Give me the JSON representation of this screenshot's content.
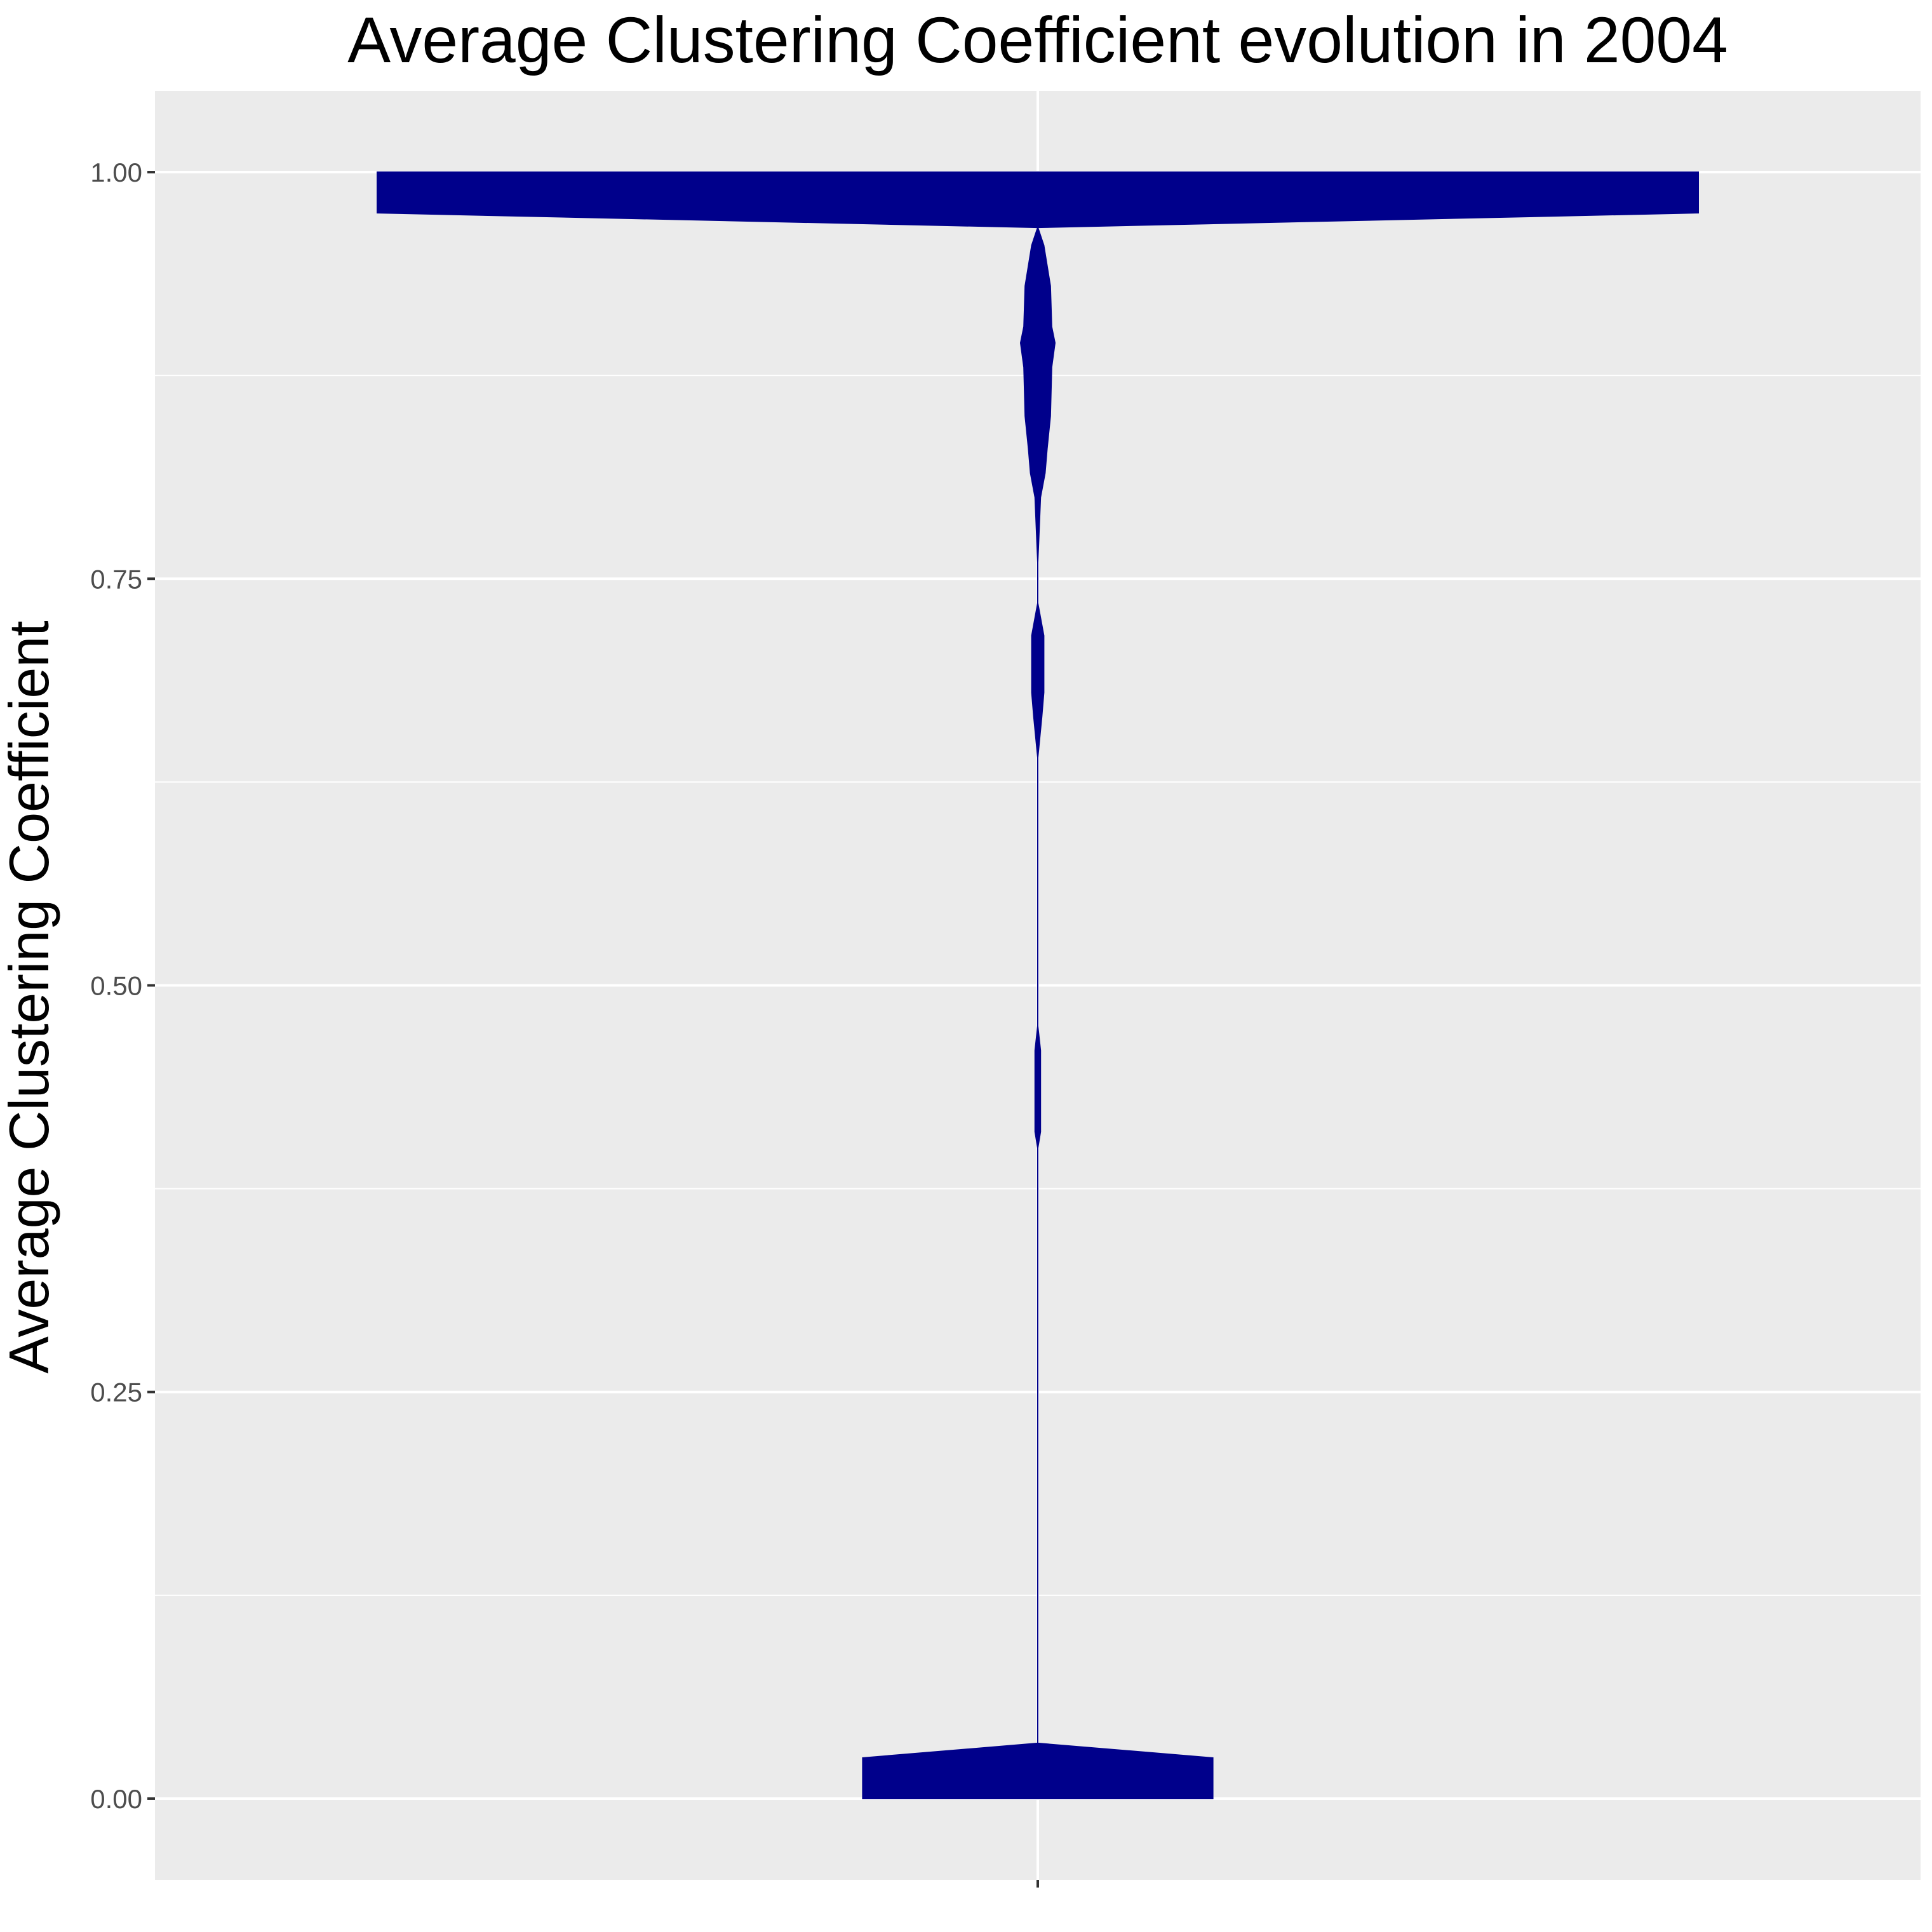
{
  "chart_data": {
    "type": "violin",
    "title": "Average Clustering Coefficient evolution in 2004",
    "xlabel": "",
    "ylabel": "Average Clustering Coefficient",
    "ylim": [
      -0.05,
      1.05
    ],
    "yticks": [
      {
        "value": 0.0,
        "label": "0.00"
      },
      {
        "value": 0.25,
        "label": "0.25"
      },
      {
        "value": 0.5,
        "label": "0.50"
      },
      {
        "value": 0.75,
        "label": "0.75"
      },
      {
        "value": 1.0,
        "label": "1.00"
      }
    ],
    "categories": [
      ""
    ],
    "grid": true,
    "colors": {
      "fill": "#00008B",
      "panel_background": "#EBEBEB",
      "grid": "#FFFFFF",
      "tick_label": "#4D4D4D"
    },
    "density_profile": {
      "note_units": "y in data units; half_width as fraction of max density half-width",
      "points": [
        {
          "y": 0.0,
          "half_width": 0.265
        },
        {
          "y": 0.025,
          "half_width": 0.265
        },
        {
          "y": 0.034,
          "half_width": 0.0
        },
        {
          "y": 0.4,
          "half_width": 0.0
        },
        {
          "y": 0.41,
          "half_width": 0.004
        },
        {
          "y": 0.46,
          "half_width": 0.004
        },
        {
          "y": 0.475,
          "half_width": 0.0
        },
        {
          "y": 0.64,
          "half_width": 0.0
        },
        {
          "y": 0.665,
          "half_width": 0.006
        },
        {
          "y": 0.68,
          "half_width": 0.009
        },
        {
          "y": 0.715,
          "half_width": 0.009
        },
        {
          "y": 0.735,
          "half_width": 0.0
        },
        {
          "y": 0.76,
          "half_width": 0.0
        },
        {
          "y": 0.8,
          "half_width": 0.004
        },
        {
          "y": 0.815,
          "half_width": 0.011
        },
        {
          "y": 0.83,
          "half_width": 0.014
        },
        {
          "y": 0.85,
          "half_width": 0.019
        },
        {
          "y": 0.88,
          "half_width": 0.021
        },
        {
          "y": 0.895,
          "half_width": 0.026
        },
        {
          "y": 0.905,
          "half_width": 0.021
        },
        {
          "y": 0.93,
          "half_width": 0.019
        },
        {
          "y": 0.955,
          "half_width": 0.009
        },
        {
          "y": 0.966,
          "half_width": 0.0
        },
        {
          "y": 0.975,
          "half_width": 1.0
        },
        {
          "y": 1.0,
          "half_width": 1.0
        }
      ]
    }
  }
}
